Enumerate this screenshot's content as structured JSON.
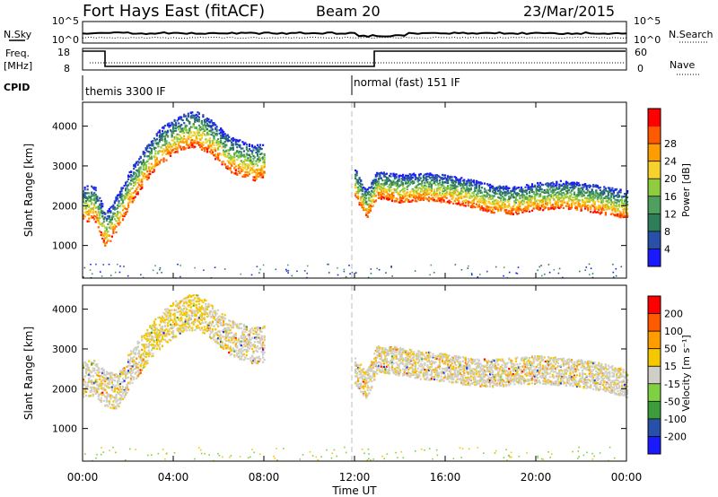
{
  "header": {
    "station": "Fort Hays East (fitACF)",
    "beam": "Beam 20",
    "date": "23/Mar/2015"
  },
  "noise_panel": {
    "left_label": "N.Sky",
    "left_ticks": [
      "10^5",
      "10^0"
    ],
    "right_label": "N.Search",
    "right_ticks": [
      "10^5",
      "10^0"
    ]
  },
  "freq_panel": {
    "left_label_1": "Freq.",
    "left_label_2": "[MHz]",
    "left_ticks": [
      "18",
      "8"
    ],
    "right_label": "Nave",
    "right_ticks": [
      "60",
      "0"
    ]
  },
  "cpid_panel": {
    "label": "CPID",
    "modes": [
      {
        "name": "themis 3300 IF",
        "start_hour": 0
      },
      {
        "name": "normal (fast) 151 IF",
        "start_hour": 12
      }
    ]
  },
  "axes": {
    "x_ticks": [
      "00:00",
      "04:00",
      "08:00",
      "12:00",
      "16:00",
      "20:00",
      "00:00"
    ],
    "x_label": "Time UT",
    "y_ticks": [
      "1000",
      "2000",
      "3000",
      "4000"
    ],
    "y_label": "Slant Range [km]"
  },
  "power_colorbar": {
    "label": "Power [dB]",
    "ticks": [
      "4",
      "8",
      "12",
      "16",
      "20",
      "24",
      "28"
    ],
    "colors": [
      "#1a1aff",
      "#2850a8",
      "#2e7d5a",
      "#4f9f5f",
      "#8fcc3e",
      "#f5d22e",
      "#ff9d00",
      "#ff5a00",
      "#ff0000"
    ]
  },
  "velocity_colorbar": {
    "label": "Velocity [m s⁻¹]",
    "ticks": [
      "200",
      "100",
      "50",
      "15",
      "-15",
      "-50",
      "-100",
      "-200"
    ],
    "colors": [
      "#1a1aff",
      "#2850a8",
      "#3d9d3a",
      "#7fd141",
      "#cfcfc8",
      "#f5c800",
      "#ff9d00",
      "#ff5a00",
      "#ff0000"
    ]
  },
  "chart_data": [
    {
      "type": "scatter",
      "title": "Power",
      "xlabel": "Time UT",
      "ylabel": "Slant Range [km]",
      "xlim": [
        0,
        24
      ],
      "ylim": [
        180,
        4600
      ],
      "series": [
        {
          "x": [
            0.0,
            0.5,
            1.0,
            1.5,
            2.0,
            2.5,
            3.0,
            3.5,
            4.0,
            4.5,
            5.0,
            5.5,
            6.0,
            6.5,
            7.0,
            7.5,
            8.0
          ],
          "y": [
            1800,
            1850,
            1150,
            1600,
            2150,
            2600,
            3000,
            3300,
            3500,
            3650,
            3700,
            3550,
            3300,
            3050,
            2950,
            2850,
            2900
          ]
        },
        {
          "x": [
            12.0,
            12.5,
            13.0,
            14.0,
            15.0,
            16.0,
            17.0,
            18.0,
            19.0,
            20.0,
            21.0,
            22.0,
            23.0,
            24.0
          ],
          "y": [
            2450,
            1900,
            2400,
            2300,
            2350,
            2300,
            2200,
            2050,
            2000,
            2100,
            2150,
            2100,
            2000,
            1900
          ]
        }
      ]
    },
    {
      "type": "scatter",
      "title": "Velocity",
      "xlabel": "Time UT",
      "ylabel": "Slant Range [km]",
      "xlim": [
        0,
        24
      ],
      "ylim": [
        180,
        4600
      ],
      "series": [
        {
          "x": [
            0.0,
            0.5,
            1.0,
            1.5,
            2.0,
            2.5,
            3.0,
            3.5,
            4.0,
            4.5,
            5.0,
            5.5,
            6.0,
            6.5,
            7.0,
            7.5,
            8.0
          ],
          "y": [
            2000,
            2050,
            1750,
            1700,
            2200,
            2600,
            3000,
            3300,
            3500,
            3650,
            3700,
            3550,
            3300,
            3050,
            2950,
            2850,
            2900
          ]
        },
        {
          "x": [
            12.0,
            12.5,
            13.0,
            14.0,
            15.0,
            16.0,
            17.0,
            18.0,
            19.0,
            20.0,
            21.0,
            22.0,
            23.0,
            24.0
          ],
          "y": [
            2300,
            1950,
            2650,
            2550,
            2450,
            2400,
            2300,
            2250,
            2300,
            2350,
            2300,
            2250,
            2150,
            2000
          ]
        }
      ]
    }
  ]
}
